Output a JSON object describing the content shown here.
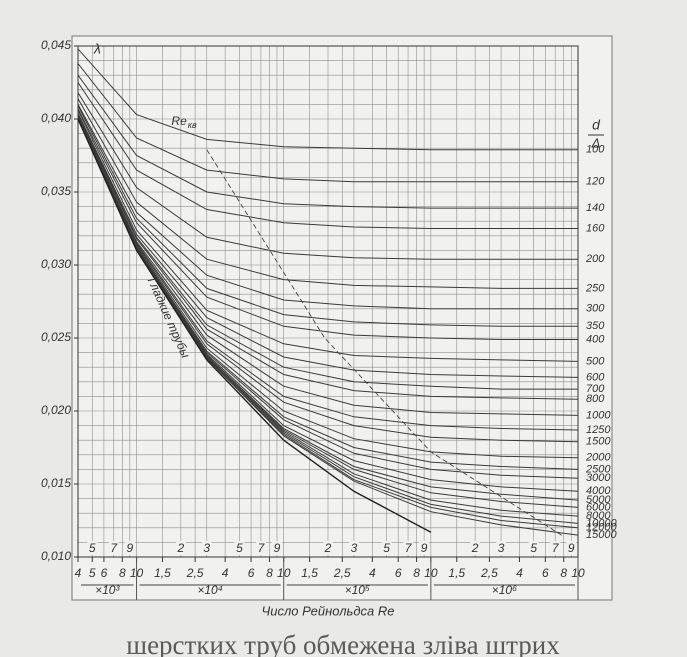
{
  "chart_data": {
    "type": "line",
    "y_label": "λ",
    "x_title": "Число Рейнольдса Re",
    "right_title_top": "d",
    "right_title_bottom": "Δ",
    "log_x": true,
    "grid": true,
    "xlim": [
      4000,
      10000000
    ],
    "ylim": [
      0.01,
      0.045
    ],
    "yticks": [
      {
        "value": 0.01,
        "label": "0,010"
      },
      {
        "value": 0.015,
        "label": "0,015"
      },
      {
        "value": 0.02,
        "label": "0,020"
      },
      {
        "value": 0.025,
        "label": "0,025"
      },
      {
        "value": 0.03,
        "label": "0,030"
      },
      {
        "value": 0.035,
        "label": "0,035"
      },
      {
        "value": 0.04,
        "label": "0,040"
      },
      {
        "value": 0.045,
        "label": "0,045"
      }
    ],
    "ygrid": [
      0.01,
      0.011,
      0.012,
      0.013,
      0.014,
      0.015,
      0.016,
      0.017,
      0.018,
      0.019,
      0.02,
      0.021,
      0.022,
      0.023,
      0.024,
      0.025,
      0.026,
      0.027,
      0.028,
      0.029,
      0.03,
      0.031,
      0.032,
      0.033,
      0.034,
      0.035,
      0.036,
      0.037,
      0.038,
      0.039,
      0.04,
      0.041,
      0.042,
      0.043,
      0.044,
      0.045
    ],
    "xgrid": [
      4000,
      5000,
      6000,
      7000,
      8000,
      9000,
      10000,
      15000,
      20000,
      25000,
      30000,
      40000,
      50000,
      60000,
      70000,
      80000,
      90000,
      100000,
      150000,
      200000,
      250000,
      300000,
      400000,
      500000,
      600000,
      700000,
      800000,
      900000,
      1000000,
      1500000,
      2000000,
      2500000,
      3000000,
      4000000,
      5000000,
      6000000,
      7000000,
      8000000,
      9000000,
      10000000
    ],
    "xticks": [
      {
        "value": 4000,
        "label": "4"
      },
      {
        "value": 5000,
        "label": "5"
      },
      {
        "value": 6000,
        "label": "6"
      },
      {
        "value": 8000,
        "label": "8"
      },
      {
        "value": 10000,
        "label": "10"
      },
      {
        "value": 15000,
        "label": "1,5"
      },
      {
        "value": 25000,
        "label": "2,5"
      },
      {
        "value": 40000,
        "label": "4"
      },
      {
        "value": 60000,
        "label": "6"
      },
      {
        "value": 80000,
        "label": "8"
      },
      {
        "value": 100000,
        "label": "10"
      },
      {
        "value": 150000,
        "label": "1,5"
      },
      {
        "value": 250000,
        "label": "2,5"
      },
      {
        "value": 400000,
        "label": "4"
      },
      {
        "value": 600000,
        "label": "6"
      },
      {
        "value": 800000,
        "label": "8"
      },
      {
        "value": 1000000,
        "label": "10"
      },
      {
        "value": 1500000,
        "label": "1,5"
      },
      {
        "value": 2500000,
        "label": "2,5"
      },
      {
        "value": 4000000,
        "label": "4"
      },
      {
        "value": 6000000,
        "label": "6"
      },
      {
        "value": 8000000,
        "label": "8"
      },
      {
        "value": 10000000,
        "label": "10"
      }
    ],
    "xticks_inner": [
      {
        "value": 5000,
        "label": "5"
      },
      {
        "value": 7000,
        "label": "7"
      },
      {
        "value": 9000,
        "label": "9"
      },
      {
        "value": 20000,
        "label": "2"
      },
      {
        "value": 30000,
        "label": "3"
      },
      {
        "value": 50000,
        "label": "5"
      },
      {
        "value": 70000,
        "label": "7"
      },
      {
        "value": 90000,
        "label": "9"
      },
      {
        "value": 200000,
        "label": "2"
      },
      {
        "value": 300000,
        "label": "3"
      },
      {
        "value": 500000,
        "label": "5"
      },
      {
        "value": 700000,
        "label": "7"
      },
      {
        "value": 900000,
        "label": "9"
      },
      {
        "value": 2000000,
        "label": "2"
      },
      {
        "value": 3000000,
        "label": "3"
      },
      {
        "value": 5000000,
        "label": "5"
      },
      {
        "value": 7000000,
        "label": "7"
      },
      {
        "value": 9000000,
        "label": "9"
      }
    ],
    "x_multipliers": [
      {
        "label": "×10³",
        "from": 4000,
        "to": 10000
      },
      {
        "label": "×10⁴",
        "from": 10000,
        "to": 100000
      },
      {
        "label": "×10⁵",
        "from": 100000,
        "to": 1000000
      },
      {
        "label": "×10⁶",
        "from": 1000000,
        "to": 10000000
      }
    ],
    "x": [
      4000,
      10000,
      30000,
      100000,
      300000,
      1000000,
      3000000,
      10000000
    ],
    "series": [
      {
        "name": "100",
        "color": "#3a3a3a",
        "values": [
          0.0448,
          0.0403,
          0.0386,
          0.0381,
          0.038,
          0.0379,
          0.0379,
          0.0379
        ]
      },
      {
        "name": "120",
        "color": "#3a3a3a",
        "values": [
          0.0438,
          0.0387,
          0.0365,
          0.0359,
          0.0357,
          0.0357,
          0.0357,
          0.0357
        ]
      },
      {
        "name": "140",
        "color": "#3a3a3a",
        "values": [
          0.043,
          0.0375,
          0.035,
          0.0342,
          0.034,
          0.0339,
          0.0339,
          0.0339
        ]
      },
      {
        "name": "160",
        "color": "#3a3a3a",
        "values": [
          0.0425,
          0.0365,
          0.0338,
          0.0329,
          0.0326,
          0.0325,
          0.0325,
          0.0325
        ]
      },
      {
        "name": "200",
        "color": "#3a3a3a",
        "values": [
          0.0418,
          0.0353,
          0.0319,
          0.0308,
          0.0305,
          0.0304,
          0.0304,
          0.0304
        ]
      },
      {
        "name": "250",
        "color": "#3a3a3a",
        "values": [
          0.0414,
          0.0343,
          0.0304,
          0.029,
          0.0286,
          0.0285,
          0.0284,
          0.0284
        ]
      },
      {
        "name": "300",
        "color": "#3a3a3a",
        "values": [
          0.041,
          0.0336,
          0.0293,
          0.0276,
          0.0272,
          0.027,
          0.027,
          0.027
        ]
      },
      {
        "name": "350",
        "color": "#3a3a3a",
        "values": [
          0.0409,
          0.0332,
          0.0284,
          0.0266,
          0.0261,
          0.0259,
          0.0258,
          0.0258
        ]
      },
      {
        "name": "400",
        "color": "#3a3a3a",
        "values": [
          0.0407,
          0.0329,
          0.0278,
          0.0258,
          0.0252,
          0.025,
          0.0249,
          0.0249
        ]
      },
      {
        "name": "500",
        "color": "#3a3a3a",
        "values": [
          0.0406,
          0.0324,
          0.0269,
          0.0246,
          0.0238,
          0.0236,
          0.0235,
          0.0234
        ]
      },
      {
        "name": "600",
        "color": "#3a3a3a",
        "values": [
          0.0404,
          0.0321,
          0.0264,
          0.0237,
          0.0228,
          0.0225,
          0.0224,
          0.0223
        ]
      },
      {
        "name": "700",
        "color": "#3a3a3a",
        "values": [
          0.0404,
          0.0319,
          0.0259,
          0.023,
          0.022,
          0.0217,
          0.0215,
          0.0215
        ]
      },
      {
        "name": "800",
        "color": "#3a3a3a",
        "values": [
          0.0403,
          0.0318,
          0.0256,
          0.0225,
          0.0214,
          0.021,
          0.0209,
          0.0208
        ]
      },
      {
        "name": "1000",
        "color": "#3a3a3a",
        "values": [
          0.0402,
          0.0316,
          0.0252,
          0.0217,
          0.0204,
          0.0199,
          0.0198,
          0.0197
        ]
      },
      {
        "name": "1250",
        "color": "#3a3a3a",
        "values": [
          0.0402,
          0.0315,
          0.0248,
          0.021,
          0.0196,
          0.019,
          0.0188,
          0.0187
        ]
      },
      {
        "name": "1500",
        "color": "#3a3a3a",
        "values": [
          0.0401,
          0.0314,
          0.0246,
          0.0206,
          0.019,
          0.0182,
          0.018,
          0.0179
        ]
      },
      {
        "name": "2000",
        "color": "#3a3a3a",
        "values": [
          0.0401,
          0.0313,
          0.0243,
          0.02,
          0.0181,
          0.0172,
          0.0169,
          0.0168
        ]
      },
      {
        "name": "2500",
        "color": "#3a3a3a",
        "values": [
          0.0401,
          0.0312,
          0.0241,
          0.0196,
          0.0175,
          0.0165,
          0.0162,
          0.016
        ]
      },
      {
        "name": "3000",
        "color": "#3a3a3a",
        "values": [
          0.0401,
          0.0312,
          0.024,
          0.0194,
          0.0171,
          0.016,
          0.0156,
          0.0154
        ]
      },
      {
        "name": "4000",
        "color": "#3a3a3a",
        "values": [
          0.04,
          0.0311,
          0.0239,
          0.019,
          0.0166,
          0.0153,
          0.0148,
          0.0145
        ]
      },
      {
        "name": "5000",
        "color": "#3a3a3a",
        "values": [
          0.04,
          0.0311,
          0.0238,
          0.0188,
          0.0162,
          0.0148,
          0.0143,
          0.0139
        ]
      },
      {
        "name": "6000",
        "color": "#3a3a3a",
        "values": [
          0.04,
          0.0311,
          0.0238,
          0.0187,
          0.016,
          0.0144,
          0.0138,
          0.0134
        ]
      },
      {
        "name": "8000",
        "color": "#3a3a3a",
        "values": [
          0.04,
          0.0311,
          0.0237,
          0.0186,
          0.0157,
          0.0139,
          0.0132,
          0.0128
        ]
      },
      {
        "name": "10000",
        "color": "#3a3a3a",
        "values": [
          0.04,
          0.0311,
          0.0237,
          0.0185,
          0.0155,
          0.0136,
          0.0128,
          0.0123
        ]
      },
      {
        "name": "12000",
        "color": "#3a3a3a",
        "values": [
          0.04,
          0.031,
          0.0236,
          0.0184,
          0.0153,
          0.0134,
          0.0125,
          0.012
        ]
      },
      {
        "name": "15000",
        "color": "#3a3a3a",
        "values": [
          0.04,
          0.031,
          0.0236,
          0.0183,
          0.0152,
          0.0131,
          0.0122,
          0.0115
        ]
      }
    ],
    "smooth": {
      "name": "Гладкие трубы",
      "color": "#222222",
      "values": [
        0.04,
        0.031,
        0.0235,
        0.018,
        0.0145,
        0.0117,
        null,
        null
      ]
    },
    "critical": {
      "label": "Re",
      "label_sub": "кв",
      "color": "#444444",
      "dashed": true,
      "x": [
        30000,
        190000,
        1000000,
        8000000
      ],
      "values": [
        0.0379,
        0.025,
        0.0172,
        0.0114
      ]
    }
  },
  "caption": "шерстких труб обмежена зліва штрих"
}
